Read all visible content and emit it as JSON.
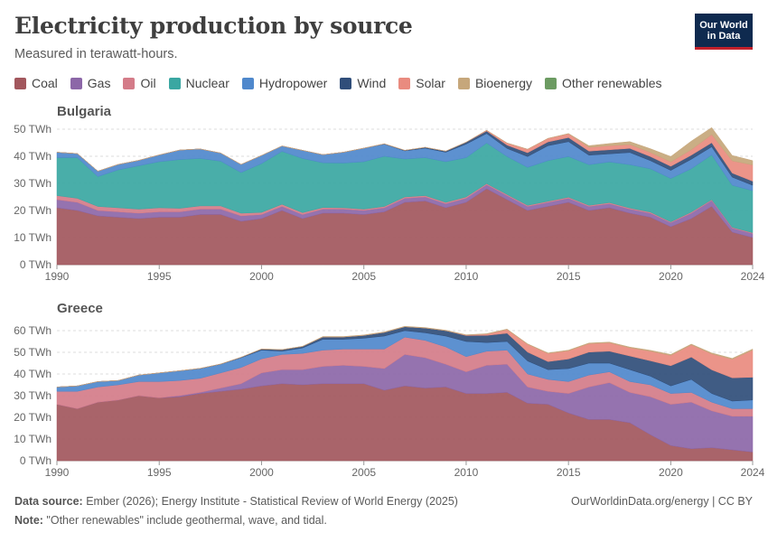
{
  "header": {
    "title": "Electricity production by source",
    "subtitle": "Measured in terawatt-hours.",
    "logo_line1": "Our World",
    "logo_line2": "in Data"
  },
  "legend": [
    {
      "label": "Coal",
      "color": "#a2575d"
    },
    {
      "label": "Gas",
      "color": "#8c67a8"
    },
    {
      "label": "Oil",
      "color": "#d47c89"
    },
    {
      "label": "Nuclear",
      "color": "#3aa7a2"
    },
    {
      "label": "Hydropower",
      "color": "#4f88cc"
    },
    {
      "label": "Wind",
      "color": "#304e7a"
    },
    {
      "label": "Solar",
      "color": "#e98b7f"
    },
    {
      "label": "Bioenergy",
      "color": "#c6a77b"
    },
    {
      "label": "Other renewables",
      "color": "#6c9b62"
    }
  ],
  "footer": {
    "source_label": "Data source:",
    "source_text": " Ember (2026); Energy Institute - Statistical Review of World Energy (2025)",
    "note_label": "Note:",
    "note_text": " \"Other renewables\" include geothermal, wave, and tidal.",
    "credit": "OurWorldinData.org/energy | CC BY"
  },
  "chart_data": [
    {
      "type": "area",
      "stacked": true,
      "title": "Bulgaria",
      "xlim": [
        1990,
        2024
      ],
      "ylim": [
        0,
        50
      ],
      "unit": "TWh",
      "y_ticks": [
        0,
        10,
        20,
        30,
        40,
        50
      ],
      "y_tick_labels": [
        "0 TWh",
        "10 TWh",
        "20 TWh",
        "30 TWh",
        "40 TWh",
        "50 TWh"
      ],
      "x_ticks": [
        1990,
        1995,
        2000,
        2005,
        2010,
        2015,
        2020,
        2024
      ],
      "x": [
        1990,
        1991,
        1992,
        1993,
        1994,
        1995,
        1996,
        1997,
        1998,
        1999,
        2000,
        2001,
        2002,
        2003,
        2004,
        2005,
        2006,
        2007,
        2008,
        2009,
        2010,
        2011,
        2012,
        2013,
        2014,
        2015,
        2016,
        2017,
        2018,
        2019,
        2020,
        2021,
        2022,
        2023,
        2024
      ],
      "series": [
        {
          "name": "Coal",
          "values": [
            21,
            20,
            18,
            17.5,
            17,
            17.5,
            17.5,
            18.5,
            18.5,
            16,
            17,
            20,
            17,
            19,
            19,
            18.5,
            19.5,
            23,
            23.5,
            21,
            23,
            28,
            24,
            20,
            21.5,
            23,
            20,
            21,
            19,
            17.5,
            14,
            17,
            21.5,
            12,
            10
          ]
        },
        {
          "name": "Gas",
          "values": [
            3,
            3,
            2,
            2,
            2,
            2,
            2,
            2,
            2,
            2,
            1.5,
            1.5,
            1.5,
            1.5,
            1.5,
            1.5,
            1.5,
            1.5,
            1.5,
            1.5,
            1.5,
            1.5,
            1.5,
            1.5,
            1.5,
            1.5,
            1.5,
            1.5,
            1.5,
            1.5,
            1.5,
            2,
            2.2,
            1.5,
            1.5
          ]
        },
        {
          "name": "Oil",
          "values": [
            1.5,
            1.5,
            1.5,
            1.5,
            1.5,
            1.5,
            1.3,
            1.2,
            1.2,
            1,
            0.8,
            0.8,
            0.7,
            0.6,
            0.5,
            0.5,
            0.5,
            0.5,
            0.5,
            0.5,
            0.5,
            0.4,
            0.4,
            0.4,
            0.4,
            0.4,
            0.4,
            0.4,
            0.4,
            0.4,
            0.3,
            0.4,
            0.3,
            0.3,
            0.3
          ]
        },
        {
          "name": "Nuclear",
          "values": [
            14,
            15,
            11,
            14,
            16,
            17,
            18,
            17.5,
            16.5,
            15,
            18,
            19.5,
            20,
            16.5,
            16.5,
            17.5,
            18.5,
            14,
            14,
            15,
            14.5,
            15,
            14,
            14,
            15,
            15,
            15,
            15,
            16,
            16,
            16,
            16,
            16.5,
            15.5,
            15.5
          ]
        },
        {
          "name": "Hydropower",
          "values": [
            2,
            1.5,
            2,
            2,
            2,
            2.5,
            3.5,
            3.5,
            3,
            3,
            3,
            2,
            3,
            3,
            4,
            5,
            4.5,
            3,
            3.5,
            3.5,
            5,
            3.5,
            3,
            4,
            5.5,
            5.5,
            3.5,
            3,
            4.5,
            3,
            3,
            3.5,
            3,
            3,
            2
          ]
        },
        {
          "name": "Wind",
          "values": [
            0,
            0,
            0,
            0,
            0,
            0,
            0,
            0,
            0,
            0,
            0,
            0,
            0,
            0,
            0,
            0,
            0.1,
            0.2,
            0.3,
            0.4,
            0.7,
            0.9,
            1.2,
            1.4,
            1.4,
            1.5,
            1.5,
            1.5,
            1.5,
            1.5,
            1.5,
            1.5,
            1.5,
            1.5,
            1.5
          ]
        },
        {
          "name": "Solar",
          "values": [
            0,
            0,
            0,
            0,
            0,
            0,
            0,
            0,
            0,
            0,
            0,
            0,
            0,
            0,
            0,
            0,
            0,
            0,
            0,
            0,
            0,
            0.3,
            0.8,
            1.3,
            1.3,
            1.4,
            1.4,
            1.5,
            1.4,
            1.5,
            1.6,
            2,
            3,
            4.5,
            6
          ]
        },
        {
          "name": "Bioenergy",
          "values": [
            0,
            0,
            0,
            0,
            0,
            0,
            0,
            0,
            0,
            0,
            0,
            0,
            0,
            0,
            0,
            0,
            0,
            0,
            0,
            0,
            0,
            0,
            0,
            0,
            0,
            0.1,
            0.6,
            0.8,
            1.1,
            1.4,
            2,
            3.2,
            2.6,
            2,
            1.6
          ]
        },
        {
          "name": "Other renewables",
          "values": [
            0,
            0,
            0,
            0,
            0,
            0,
            0,
            0,
            0,
            0,
            0,
            0,
            0,
            0,
            0,
            0,
            0,
            0,
            0,
            0,
            0,
            0,
            0,
            0,
            0,
            0,
            0,
            0,
            0,
            0,
            0,
            0,
            0,
            0,
            0
          ]
        }
      ]
    },
    {
      "type": "area",
      "stacked": true,
      "title": "Greece",
      "xlim": [
        1990,
        2024
      ],
      "ylim": [
        0,
        60
      ],
      "unit": "TWh",
      "y_ticks": [
        0,
        10,
        20,
        30,
        40,
        50,
        60
      ],
      "y_tick_labels": [
        "0 TWh",
        "10 TWh",
        "20 TWh",
        "30 TWh",
        "40 TWh",
        "50 TWh",
        "60 TWh"
      ],
      "x_ticks": [
        1990,
        1995,
        2000,
        2005,
        2010,
        2015,
        2020,
        2024
      ],
      "x": [
        1990,
        1991,
        1992,
        1993,
        1994,
        1995,
        1996,
        1997,
        1998,
        1999,
        2000,
        2001,
        2002,
        2003,
        2004,
        2005,
        2006,
        2007,
        2008,
        2009,
        2010,
        2011,
        2012,
        2013,
        2014,
        2015,
        2016,
        2017,
        2018,
        2019,
        2020,
        2021,
        2022,
        2023,
        2024
      ],
      "series": [
        {
          "name": "Coal",
          "values": [
            26,
            24,
            27,
            28,
            30,
            29,
            29.5,
            31,
            32,
            33,
            34.5,
            35.5,
            35,
            35.5,
            35.5,
            35.5,
            32.5,
            34.5,
            33.5,
            34,
            31,
            31,
            31.5,
            26.5,
            26,
            22,
            19,
            19,
            17.5,
            12,
            7,
            5.5,
            6,
            5,
            4
          ]
        },
        {
          "name": "Gas",
          "values": [
            0,
            0,
            0,
            0,
            0,
            0,
            0.5,
            0.5,
            1.5,
            2.5,
            6,
            6.5,
            7,
            8,
            8.5,
            8,
            10,
            14.5,
            14,
            10.5,
            10,
            13,
            13,
            7.5,
            6,
            9,
            15,
            17,
            14,
            17.5,
            19,
            21.5,
            17,
            15.5,
            16.5
          ]
        },
        {
          "name": "Oil",
          "values": [
            6,
            8,
            7,
            7,
            6.5,
            7.5,
            7,
            6.5,
            7,
            7.5,
            6.5,
            7,
            7.5,
            7.5,
            7.5,
            8,
            9,
            8,
            8,
            8,
            7,
            6.5,
            6.5,
            6,
            5.5,
            5.5,
            5.5,
            5,
            5,
            5.5,
            5,
            4.5,
            4,
            3.5,
            3.5
          ]
        },
        {
          "name": "Nuclear",
          "values": [
            0,
            0,
            0,
            0,
            0,
            0,
            0,
            0,
            0,
            0,
            0,
            0,
            0,
            0,
            0,
            0,
            0,
            0,
            0,
            0,
            0,
            0,
            0,
            0,
            0,
            0,
            0,
            0,
            0,
            0,
            0,
            0,
            0,
            0,
            0
          ]
        },
        {
          "name": "Hydropower",
          "values": [
            2,
            2.5,
            2.5,
            2,
            3,
            4,
            4.5,
            4.5,
            4,
            4.5,
            4,
            1.5,
            2.5,
            5,
            4.5,
            5,
            6,
            3,
            3.5,
            5,
            7,
            4,
            4,
            6,
            4.5,
            6,
            5.5,
            4,
            5.5,
            4,
            3.5,
            6,
            4,
            3.5,
            4
          ]
        },
        {
          "name": "Wind",
          "values": [
            0,
            0,
            0,
            0,
            0,
            0,
            0,
            0.1,
            0.1,
            0.2,
            0.5,
            0.7,
            0.7,
            1.1,
            1.1,
            1.3,
            1.7,
            1.8,
            2.2,
            2.5,
            2.7,
            3.3,
            3.8,
            4.1,
            3.7,
            4.4,
            5.1,
            5.5,
            6.3,
            7.1,
            9.3,
            10.3,
            10.9,
            10.7,
            10.5
          ]
        },
        {
          "name": "Solar",
          "values": [
            0,
            0,
            0,
            0,
            0,
            0,
            0,
            0,
            0,
            0,
            0,
            0,
            0,
            0,
            0,
            0,
            0,
            0,
            0,
            0,
            0.2,
            0.6,
            1.7,
            3.6,
            3.8,
            3.8,
            3.9,
            3.9,
            3.8,
            4.4,
            4.8,
            5.6,
            7.4,
            8.6,
            12.5
          ]
        },
        {
          "name": "Bioenergy",
          "values": [
            0,
            0,
            0,
            0,
            0,
            0,
            0,
            0,
            0,
            0,
            0.1,
            0.1,
            0.1,
            0.2,
            0.2,
            0.2,
            0.2,
            0.2,
            0.2,
            0.2,
            0.2,
            0.2,
            0.2,
            0.2,
            0.2,
            0.3,
            0.3,
            0.3,
            0.3,
            0.4,
            0.4,
            0.4,
            0.4,
            0.4,
            0.5
          ]
        },
        {
          "name": "Other renewables",
          "values": [
            0,
            0,
            0,
            0,
            0,
            0,
            0,
            0,
            0,
            0,
            0,
            0,
            0,
            0,
            0,
            0,
            0,
            0,
            0,
            0,
            0,
            0,
            0,
            0,
            0,
            0,
            0,
            0,
            0,
            0,
            0,
            0,
            0,
            0,
            0
          ]
        }
      ]
    }
  ]
}
